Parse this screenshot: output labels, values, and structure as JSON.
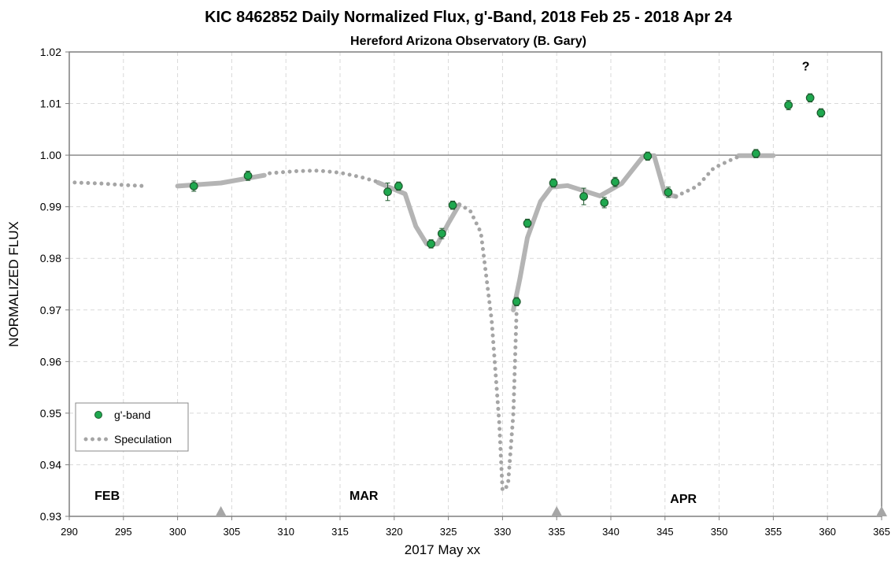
{
  "chart_data": {
    "type": "scatter",
    "title": "KIC 8462852 Daily  Normalized Flux, g'-Band, 2018 Feb 25 - 2018 Apr 24",
    "subtitle": "Hereford Arizona Observatory (B. Gary)",
    "xlabel": "2017 May xx",
    "ylabel": "NORMALIZED FLUX",
    "xlim": [
      290,
      365
    ],
    "ylim": [
      0.93,
      1.02
    ],
    "x_ticks": [
      290,
      295,
      300,
      305,
      310,
      315,
      320,
      325,
      330,
      335,
      340,
      345,
      350,
      355,
      360,
      365
    ],
    "y_ticks": [
      "0.93",
      "0.94",
      "0.95",
      "0.96",
      "0.97",
      "0.98",
      "0.99",
      "1.00",
      "1.01",
      "1.02"
    ],
    "reference_line_y": 1.0,
    "grid": true,
    "legend_position": "bottom-left",
    "colors": {
      "point_fill": "#1fa84f",
      "point_edge": "#1e5a2e",
      "fit_line": "#b4b4b4",
      "speculation": "#a5a5a5",
      "grid": "#d9d9d9",
      "markers": "#a6a6a6"
    },
    "series": [
      {
        "name": "g'-band",
        "kind": "points",
        "points": [
          {
            "x": 301.5,
            "y": 0.994,
            "err": 0.001
          },
          {
            "x": 306.5,
            "y": 0.996,
            "err": 0.0009
          },
          {
            "x": 319.4,
            "y": 0.9929,
            "err": 0.0017
          },
          {
            "x": 320.4,
            "y": 0.994,
            "err": 0.0008
          },
          {
            "x": 323.4,
            "y": 0.9828,
            "err": 0.0008
          },
          {
            "x": 324.4,
            "y": 0.9848,
            "err": 0.001
          },
          {
            "x": 325.4,
            "y": 0.9903,
            "err": 0.0008
          },
          {
            "x": 331.3,
            "y": 0.9716,
            "err": 0.0008
          },
          {
            "x": 332.3,
            "y": 0.9868,
            "err": 0.0008
          },
          {
            "x": 334.7,
            "y": 0.9946,
            "err": 0.0008
          },
          {
            "x": 337.5,
            "y": 0.992,
            "err": 0.0016
          },
          {
            "x": 339.4,
            "y": 0.9908,
            "err": 0.001
          },
          {
            "x": 340.4,
            "y": 0.9948,
            "err": 0.0009
          },
          {
            "x": 343.4,
            "y": 0.9998,
            "err": 0.0008
          },
          {
            "x": 345.3,
            "y": 0.9928,
            "err": 0.001
          },
          {
            "x": 353.4,
            "y": 1.0003,
            "err": 0.0008
          },
          {
            "x": 356.4,
            "y": 1.0097,
            "err": 0.0009
          },
          {
            "x": 358.4,
            "y": 1.0111,
            "err": 0.0008
          },
          {
            "x": 359.4,
            "y": 1.0082,
            "err": 0.0008
          }
        ]
      },
      {
        "kind": "fit",
        "segments": [
          [
            [
              300,
              0.994
            ],
            [
              304,
              0.9946
            ],
            [
              308,
              0.9961
            ]
          ],
          [
            [
              318.5,
              0.9947
            ],
            [
              321,
              0.9925
            ],
            [
              322,
              0.9862
            ],
            [
              323,
              0.9828
            ],
            [
              324,
              0.9828
            ],
            [
              325,
              0.9868
            ],
            [
              326,
              0.9904
            ]
          ],
          [
            [
              331,
              0.97
            ],
            [
              331.6,
              0.976
            ],
            [
              332.3,
              0.984
            ],
            [
              333.5,
              0.991
            ],
            [
              334.5,
              0.9938
            ],
            [
              336,
              0.9941
            ],
            [
              339,
              0.9921
            ],
            [
              341,
              0.9945
            ],
            [
              343,
              0.9998
            ],
            [
              344,
              0.9999
            ],
            [
              345,
              0.9925
            ],
            [
              346,
              0.992
            ]
          ],
          [
            [
              351.8,
              0.9999
            ],
            [
              355,
              0.9999
            ]
          ]
        ]
      },
      {
        "name": "Speculation",
        "kind": "dotted",
        "segments": [
          [
            [
              290.5,
              0.9947
            ],
            [
              293,
              0.9945
            ],
            [
              295,
              0.9942
            ],
            [
              297,
              0.994
            ]
          ],
          [
            [
              308.5,
              0.9965
            ],
            [
              311,
              0.9969
            ],
            [
              313,
              0.997
            ],
            [
              315,
              0.9966
            ],
            [
              317,
              0.9957
            ],
            [
              318.5,
              0.9948
            ]
          ],
          [
            [
              326,
              0.9904
            ],
            [
              327,
              0.9893
            ],
            [
              328,
              0.985
            ],
            [
              329,
              0.968
            ],
            [
              329.7,
              0.948
            ],
            [
              330,
              0.935
            ],
            [
              330.5,
              0.936
            ],
            [
              331,
              0.95
            ],
            [
              331.3,
              0.97
            ]
          ],
          [
            [
              346,
              0.992
            ],
            [
              348,
              0.994
            ],
            [
              349.5,
              0.9975
            ],
            [
              351,
              0.999
            ],
            [
              352,
              0.9999
            ]
          ]
        ]
      }
    ],
    "annotations": [
      {
        "text": "FEB",
        "x": 293.5,
        "y": 0.9332
      },
      {
        "text": "MAR",
        "x": 317.2,
        "y": 0.9332
      },
      {
        "text": "APR",
        "x": 346.7,
        "y": 0.9326
      },
      {
        "text": "?",
        "x": 358.0,
        "y": 1.0164
      }
    ],
    "triangle_markers_x": [
      304,
      335,
      365
    ]
  }
}
